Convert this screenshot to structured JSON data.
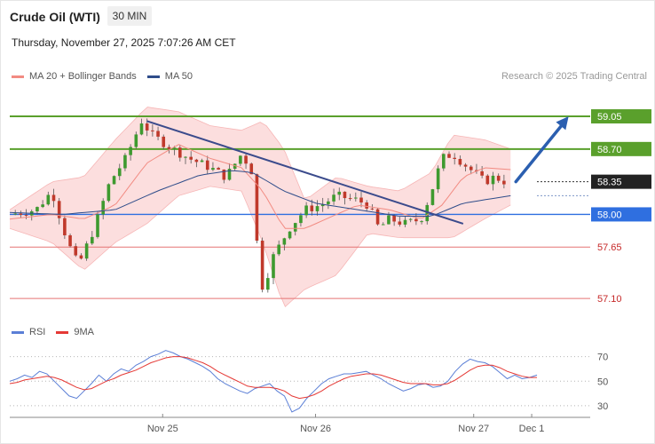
{
  "header": {
    "title": "Crude Oil (WTI)",
    "timeframe": "30 MIN",
    "datetime": "Thursday, November 27, 2025 7:07:26 AM CET"
  },
  "legend": {
    "ma20": {
      "label": "MA 20 + Bollinger Bands",
      "color": "#f28b82"
    },
    "ma50": {
      "label": "MA 50",
      "color": "#2f4d8a"
    },
    "credit": "Research © 2025 Trading Central"
  },
  "rsi_legend": {
    "rsi": {
      "label": "RSI",
      "color": "#5b7fd6"
    },
    "ma9": {
      "label": "9MA",
      "color": "#e53935"
    }
  },
  "chart_data": [
    {
      "type": "candlestick",
      "yrange": [
        56.92,
        59.25
      ],
      "xrange": [
        0,
        100
      ],
      "x_ticks": [
        {
          "label": "Nov 25",
          "x": 29
        },
        {
          "label": "Nov 26",
          "x": 58
        },
        {
          "label": "Nov 27",
          "x": 88
        },
        {
          "label": "Dec 1",
          "x": 99
        }
      ],
      "levels": [
        {
          "value": 59.05,
          "label": "59.05",
          "kind": "resistance",
          "color": "#5aa02c"
        },
        {
          "value": 58.7,
          "label": "58.70",
          "kind": "resistance",
          "color": "#5aa02c"
        },
        {
          "value": 58.35,
          "label": "58.35",
          "kind": "last",
          "color": "#333333"
        },
        {
          "value": 58.0,
          "label": "58.00",
          "kind": "pivot",
          "color": "#2f6fe0"
        },
        {
          "value": 57.65,
          "label": "57.65",
          "kind": "support",
          "color": "#e57373"
        },
        {
          "value": 57.1,
          "label": "57.10",
          "kind": "support",
          "color": "#e57373"
        }
      ],
      "trendline": {
        "from": [
          26,
          59.0
        ],
        "to": [
          86,
          57.9
        ]
      },
      "forecast_arrow": {
        "from": [
          96,
          58.35
        ],
        "to": [
          106,
          59.05
        ]
      },
      "price_path": [
        [
          0,
          58.0
        ],
        [
          5,
          58.05
        ],
        [
          8,
          58.25
        ],
        [
          11,
          57.7
        ],
        [
          13,
          57.45
        ],
        [
          16,
          57.85
        ],
        [
          19,
          58.35
        ],
        [
          22,
          58.6
        ],
        [
          25,
          59.0
        ],
        [
          27,
          58.85
        ],
        [
          31,
          58.7
        ],
        [
          34,
          58.6
        ],
        [
          38,
          58.5
        ],
        [
          41,
          58.4
        ],
        [
          44,
          58.65
        ],
        [
          46,
          58.45
        ],
        [
          47,
          57.6
        ],
        [
          48,
          57.2
        ],
        [
          50,
          57.55
        ],
        [
          53,
          57.85
        ],
        [
          56,
          58.05
        ],
        [
          59,
          58.1
        ],
        [
          62,
          58.2
        ],
        [
          66,
          58.15
        ],
        [
          68,
          58.1
        ],
        [
          70,
          57.85
        ],
        [
          72,
          57.95
        ],
        [
          75,
          57.9
        ],
        [
          78,
          57.95
        ],
        [
          80,
          58.25
        ],
        [
          82,
          58.6
        ],
        [
          84,
          58.65
        ],
        [
          86,
          58.55
        ],
        [
          88,
          58.45
        ],
        [
          90,
          58.35
        ],
        [
          92,
          58.4
        ],
        [
          94,
          58.35
        ]
      ],
      "ma20_path": [
        [
          0,
          57.95
        ],
        [
          8,
          58.0
        ],
        [
          14,
          57.95
        ],
        [
          20,
          58.1
        ],
        [
          26,
          58.55
        ],
        [
          32,
          58.75
        ],
        [
          38,
          58.6
        ],
        [
          44,
          58.5
        ],
        [
          48,
          58.25
        ],
        [
          52,
          57.85
        ],
        [
          56,
          57.85
        ],
        [
          60,
          57.95
        ],
        [
          66,
          58.1
        ],
        [
          72,
          58.05
        ],
        [
          78,
          57.95
        ],
        [
          82,
          58.1
        ],
        [
          86,
          58.4
        ],
        [
          90,
          58.5
        ],
        [
          95,
          58.48
        ]
      ],
      "ma50_path": [
        [
          0,
          58.02
        ],
        [
          10,
          58.0
        ],
        [
          20,
          58.05
        ],
        [
          28,
          58.25
        ],
        [
          36,
          58.42
        ],
        [
          42,
          58.47
        ],
        [
          46,
          58.45
        ],
        [
          52,
          58.25
        ],
        [
          58,
          58.12
        ],
        [
          66,
          58.05
        ],
        [
          74,
          57.98
        ],
        [
          80,
          57.98
        ],
        [
          86,
          58.12
        ],
        [
          95,
          58.2
        ]
      ],
      "bb_upper": [
        [
          0,
          58.05
        ],
        [
          8,
          58.35
        ],
        [
          14,
          58.4
        ],
        [
          20,
          58.8
        ],
        [
          26,
          59.15
        ],
        [
          32,
          59.1
        ],
        [
          38,
          58.95
        ],
        [
          44,
          58.9
        ],
        [
          48,
          59.0
        ],
        [
          52,
          58.7
        ],
        [
          56,
          58.15
        ],
        [
          62,
          58.4
        ],
        [
          68,
          58.3
        ],
        [
          74,
          58.25
        ],
        [
          80,
          58.45
        ],
        [
          84,
          58.85
        ],
        [
          90,
          58.8
        ],
        [
          95,
          58.7
        ]
      ],
      "bb_lower": [
        [
          0,
          57.85
        ],
        [
          8,
          57.7
        ],
        [
          14,
          57.4
        ],
        [
          20,
          57.7
        ],
        [
          26,
          57.9
        ],
        [
          32,
          58.2
        ],
        [
          38,
          58.3
        ],
        [
          44,
          58.25
        ],
        [
          48,
          57.7
        ],
        [
          52,
          57.0
        ],
        [
          56,
          57.2
        ],
        [
          62,
          57.35
        ],
        [
          68,
          57.8
        ],
        [
          74,
          57.75
        ],
        [
          80,
          57.75
        ],
        [
          84,
          57.75
        ],
        [
          90,
          57.95
        ],
        [
          95,
          58.1
        ]
      ]
    },
    {
      "type": "line",
      "title": "RSI",
      "yrange": [
        22,
        82
      ],
      "yticks": [
        70,
        50,
        30
      ],
      "guides": [
        70,
        50,
        30
      ],
      "series": [
        {
          "name": "RSI",
          "color": "#5b7fd6",
          "values": [
            50,
            52,
            55,
            53,
            58,
            56,
            50,
            44,
            38,
            36,
            42,
            48,
            55,
            50,
            56,
            60,
            58,
            63,
            66,
            70,
            72,
            75,
            73,
            70,
            68,
            65,
            62,
            58,
            52,
            48,
            45,
            42,
            40,
            44,
            46,
            48,
            42,
            38,
            25,
            28,
            36,
            42,
            48,
            52,
            54,
            56,
            56,
            57,
            58,
            55,
            52,
            48,
            45,
            42,
            44,
            47,
            48,
            45,
            46,
            50,
            58,
            64,
            68,
            66,
            65,
            62,
            57,
            52,
            55,
            52,
            53,
            55
          ]
        },
        {
          "name": "9MA",
          "color": "#e53935",
          "values": [
            48,
            49,
            51,
            52,
            53,
            54,
            53,
            51,
            48,
            45,
            43,
            44,
            47,
            50,
            52,
            55,
            57,
            59,
            62,
            65,
            67,
            69,
            70,
            70,
            69,
            67,
            65,
            62,
            58,
            55,
            52,
            49,
            46,
            45,
            45,
            45,
            44,
            42,
            38,
            36,
            37,
            39,
            42,
            46,
            49,
            52,
            54,
            55,
            56,
            56,
            55,
            53,
            51,
            49,
            48,
            48,
            48,
            47,
            47,
            48,
            51,
            55,
            59,
            62,
            63,
            63,
            61,
            58,
            56,
            54,
            53,
            53
          ]
        }
      ]
    }
  ]
}
